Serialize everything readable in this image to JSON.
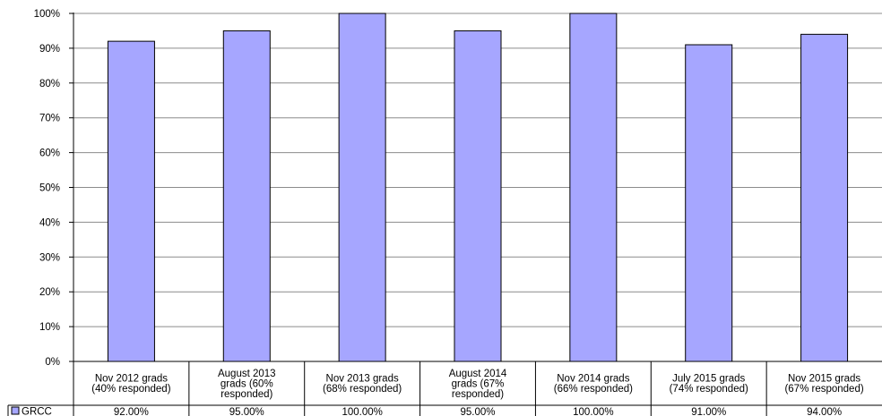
{
  "chart_data": {
    "type": "bar",
    "categories": [
      "Nov 2012 grads (40% responded)",
      "August 2013 grads (60% responded)",
      "Nov 2013 grads (68% responded)",
      "August 2014 grads (67% responded)",
      "Nov 2014 grads (66% responded)",
      "July 2015 grads (74% responded)",
      "Nov 2015 grads (67% responded)"
    ],
    "category_label_lines": [
      [
        "Nov 2012 grads",
        "(40% responded)"
      ],
      [
        "August 2013",
        "grads  (60%",
        "responded)"
      ],
      [
        "Nov 2013 grads",
        "(68% responded)"
      ],
      [
        "August 2014",
        "grads (67%",
        "responded)"
      ],
      [
        "Nov 2014 grads",
        "(66% responded)"
      ],
      [
        "July 2015 grads",
        "(74% responded)"
      ],
      [
        "Nov 2015 grads",
        "(67% responded)"
      ]
    ],
    "series": [
      {
        "name": "GRCC",
        "values": [
          92,
          95,
          100,
          95,
          100,
          91,
          94
        ],
        "value_labels": [
          "92.00%",
          "95.00%",
          "100.00%",
          "95.00%",
          "100.00%",
          "91.00%",
          "94.00%"
        ]
      }
    ],
    "y_ticks": [
      "0%",
      "10%",
      "20%",
      "30%",
      "40%",
      "50%",
      "60%",
      "70%",
      "80%",
      "90%",
      "100%"
    ],
    "ylim": [
      0,
      100
    ],
    "grid": true,
    "legend": "data-table",
    "bar_color": "#a6a6ff"
  }
}
